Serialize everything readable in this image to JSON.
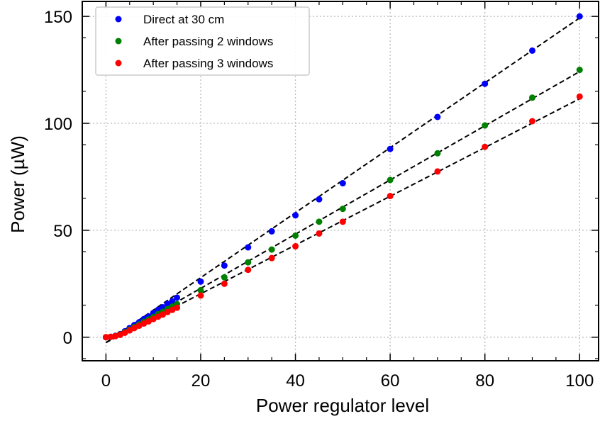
{
  "chart_data": {
    "type": "scatter",
    "xlabel": "Power regulator level",
    "ylabel": "Power (µW)",
    "xlim": [
      -5,
      104
    ],
    "ylim": [
      -11,
      157
    ],
    "xticks": [
      0,
      20,
      40,
      60,
      80,
      100
    ],
    "yticks": [
      0,
      50,
      100,
      150
    ],
    "grid": true,
    "legend_position": "top-left",
    "series": [
      {
        "name": "Direct at 30 cm",
        "color": "#0000ff",
        "x": [
          0,
          1,
          2,
          3,
          4,
          5,
          6,
          7,
          8,
          9,
          10,
          11,
          12,
          13,
          14,
          15,
          20,
          25,
          30,
          35,
          40,
          45,
          50,
          60,
          70,
          80,
          90,
          100
        ],
        "y": [
          0,
          0.2,
          0.7,
          1.5,
          2.8,
          4.3,
          5.7,
          7.0,
          8.5,
          9.7,
          11.3,
          12.8,
          14.0,
          15.6,
          16.8,
          18.5,
          26.0,
          33.5,
          42.0,
          49.5,
          57.0,
          64.5,
          72.0,
          88.0,
          103.0,
          118.5,
          134.0,
          150.0
        ],
        "fit": {
          "x": [
            0,
            100
          ],
          "y": [
            -2.5,
            149.3
          ]
        }
      },
      {
        "name": "After passing 2 windows",
        "color": "#008000",
        "x": [
          0,
          1,
          2,
          3,
          4,
          5,
          6,
          7,
          8,
          9,
          10,
          11,
          12,
          13,
          14,
          15,
          20,
          25,
          30,
          35,
          40,
          45,
          50,
          60,
          70,
          80,
          90,
          100
        ],
        "y": [
          0,
          0.2,
          0.6,
          1.3,
          2.4,
          3.6,
          4.8,
          6.0,
          7.2,
          8.3,
          9.5,
          10.8,
          11.9,
          13.2,
          14.3,
          15.5,
          22.0,
          28.0,
          35.0,
          41.0,
          47.5,
          54.0,
          60.0,
          73.5,
          86.0,
          99.0,
          112.0,
          125.0
        ],
        "fit": {
          "x": [
            0,
            100
          ],
          "y": [
            -2.5,
            124.2
          ]
        }
      },
      {
        "name": "After passing 3 windows",
        "color": "#ff0000",
        "x": [
          0,
          1,
          2,
          3,
          4,
          5,
          6,
          7,
          8,
          9,
          10,
          11,
          12,
          13,
          14,
          15,
          20,
          25,
          30,
          35,
          40,
          45,
          50,
          60,
          70,
          80,
          90,
          100
        ],
        "y": [
          0,
          0.2,
          0.5,
          1.1,
          2.1,
          3.2,
          4.3,
          5.4,
          6.4,
          7.4,
          8.5,
          9.6,
          10.6,
          11.8,
          12.8,
          13.8,
          19.5,
          25.0,
          31.5,
          37.0,
          42.5,
          48.5,
          54.0,
          66.0,
          77.5,
          89.0,
          101.0,
          112.5
        ],
        "fit": {
          "x": [
            0,
            100
          ],
          "y": [
            -2.5,
            111.5
          ]
        }
      }
    ]
  }
}
